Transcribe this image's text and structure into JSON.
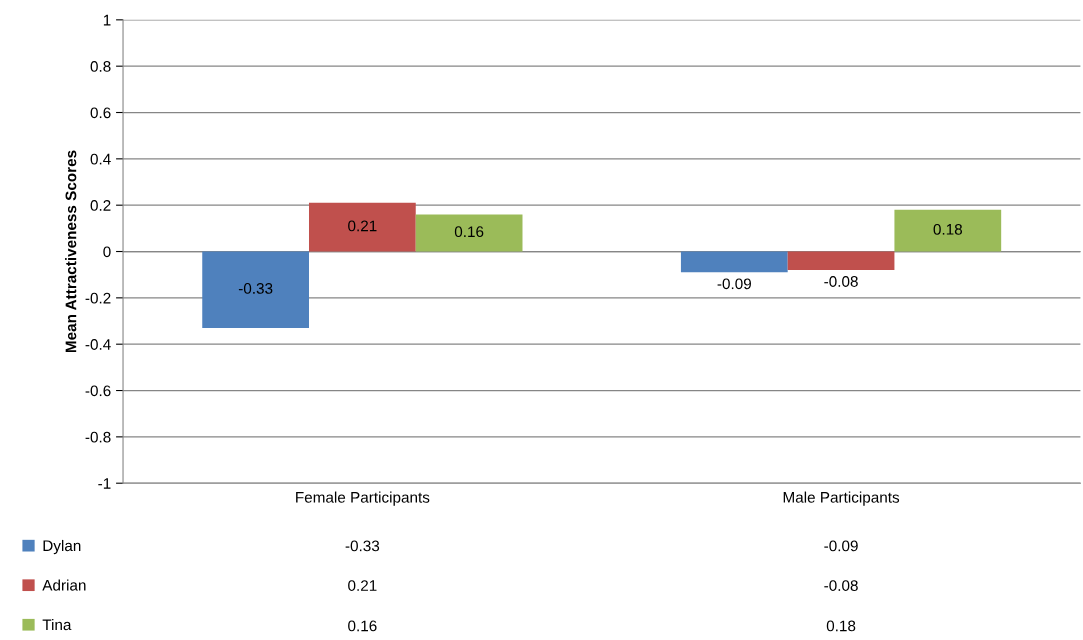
{
  "chart_data": {
    "type": "bar",
    "ylabel": "Mean Attractiveness Scores",
    "categories": [
      "Female Participants",
      "Male Participants"
    ],
    "series": [
      {
        "name": "Dylan",
        "color": "#4f81bd",
        "values": [
          -0.33,
          -0.09
        ],
        "value_labels": [
          "-0.33",
          "-0.09"
        ]
      },
      {
        "name": "Adrian",
        "color": "#c0504d",
        "values": [
          0.21,
          -0.08
        ],
        "value_labels": [
          "0.21",
          "-0.08"
        ]
      },
      {
        "name": "Tina",
        "color": "#9bbb59",
        "values": [
          0.16,
          0.18
        ],
        "value_labels": [
          "0.16",
          "0.18"
        ]
      }
    ],
    "ylim": [
      -1,
      1
    ],
    "yticks": [
      -1,
      -0.8,
      -0.6,
      -0.4,
      -0.2,
      0,
      0.2,
      0.4,
      0.6,
      0.8,
      1
    ],
    "annotations": [
      "-0.33",
      "-0.09",
      "0.21",
      "-0.08",
      "0.16",
      "0.18"
    ],
    "grid": "y",
    "legend": "bottom"
  }
}
